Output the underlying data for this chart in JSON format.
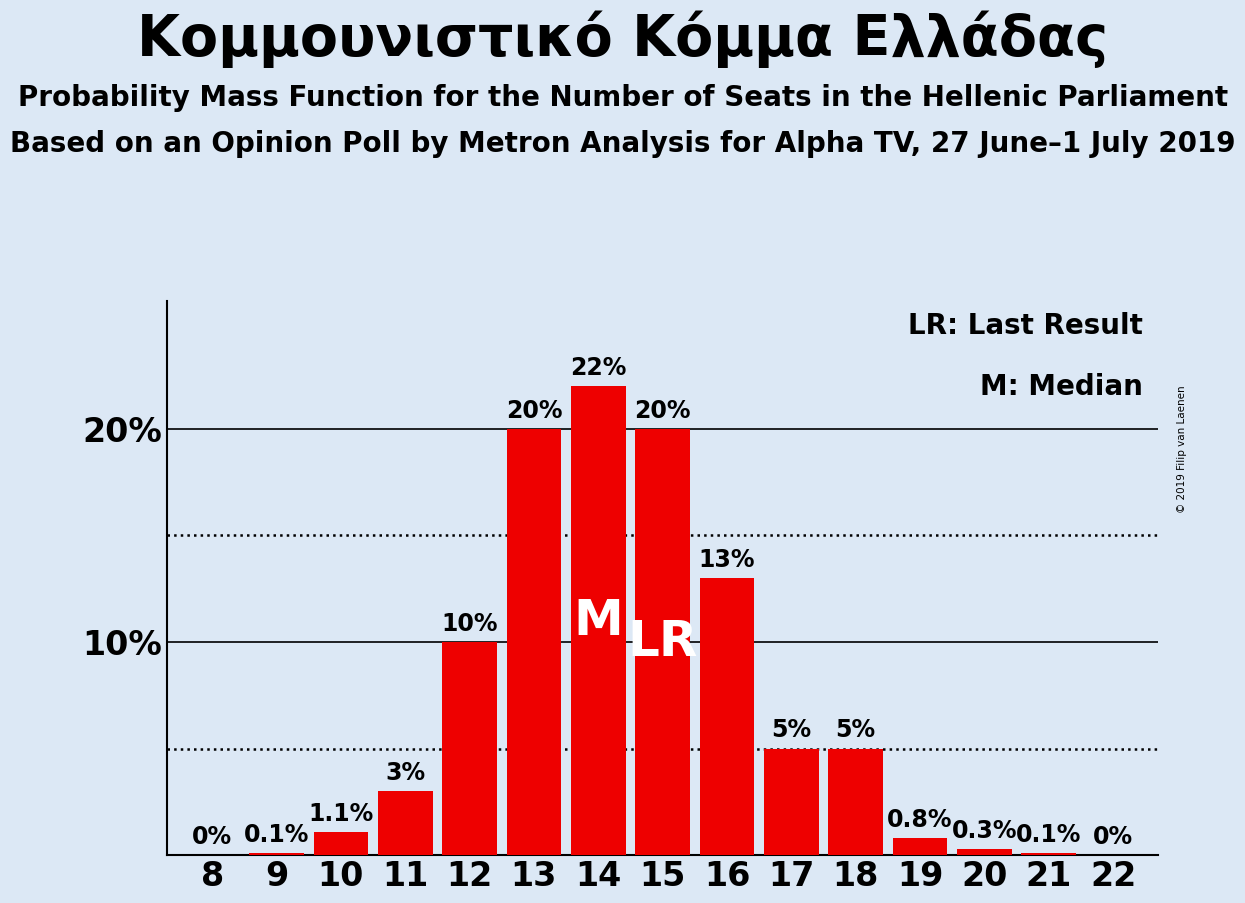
{
  "title": "Κομμουνιστικό Κόμμα Ελλάδας",
  "subtitle1": "Probability Mass Function for the Number of Seats in the Hellenic Parliament",
  "subtitle2": "Based on an Opinion Poll by Metron Analysis for Alpha TV, 27 June–1 July 2019",
  "copyright": "© 2019 Filip van Laenen",
  "seats": [
    8,
    9,
    10,
    11,
    12,
    13,
    14,
    15,
    16,
    17,
    18,
    19,
    20,
    21,
    22
  ],
  "probabilities": [
    0.0,
    0.1,
    1.1,
    3.0,
    10.0,
    20.0,
    22.0,
    20.0,
    13.0,
    5.0,
    5.0,
    0.8,
    0.3,
    0.1,
    0.0
  ],
  "bar_color": "#ee0000",
  "bg_color": "#dce8f5",
  "median_seat": 14,
  "last_result_seat": 15,
  "dotted_lines": [
    5.0,
    15.0
  ],
  "solid_lines": [
    10.0,
    20.0
  ],
  "legend_lr": "LR: Last Result",
  "legend_m": "M: Median",
  "ylabel_fontsize": 24,
  "xlabel_fontsize": 24,
  "title_fontsize": 40,
  "subtitle_fontsize": 20,
  "bar_label_fontsize": 17,
  "annotation_fontsize": 36,
  "legend_fontsize": 20
}
